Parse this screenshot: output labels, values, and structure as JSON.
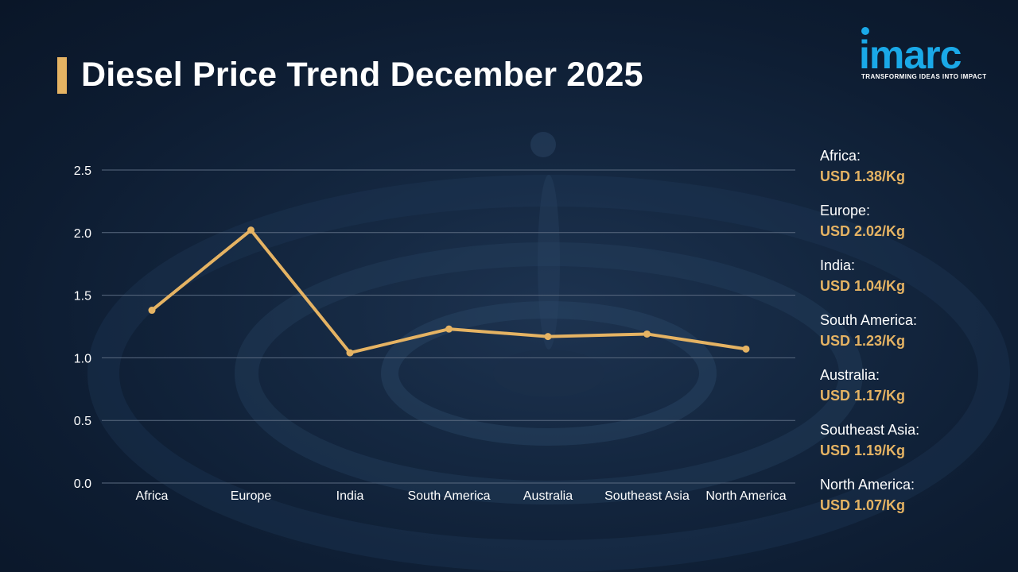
{
  "title": "Diesel Price Trend December 2025",
  "logo": {
    "word": "imarc",
    "tagline": "TRANSFORMING IDEAS INTO IMPACT"
  },
  "colors": {
    "accent": "#e5b363",
    "logo_blue": "#1aa9e8",
    "background": "#0d1c31",
    "gridline": "#5a6a80"
  },
  "chart_data": {
    "type": "line",
    "title": "",
    "xlabel": "",
    "ylabel": "",
    "categories": [
      "Africa",
      "Europe",
      "India",
      "South America",
      "Australia",
      "Southeast Asia",
      "North America"
    ],
    "values": [
      1.38,
      2.02,
      1.04,
      1.23,
      1.17,
      1.19,
      1.07
    ],
    "ylim": [
      0,
      2.5
    ],
    "yticks": [
      "0.0",
      "0.5",
      "1.0",
      "1.5",
      "2.0",
      "2.5"
    ],
    "grid": true,
    "legend_placement": "right"
  },
  "legend": [
    {
      "name": "Africa:",
      "value": "USD 1.38/Kg"
    },
    {
      "name": "Europe:",
      "value": "USD 2.02/Kg"
    },
    {
      "name": "India:",
      "value": "USD 1.04/Kg"
    },
    {
      "name": "South America:",
      "value": "USD 1.23/Kg"
    },
    {
      "name": "Australia:",
      "value": "USD 1.17/Kg"
    },
    {
      "name": "Southeast Asia:",
      "value": "USD 1.19/Kg"
    },
    {
      "name": "North America:",
      "value": "USD 1.07/Kg"
    }
  ]
}
